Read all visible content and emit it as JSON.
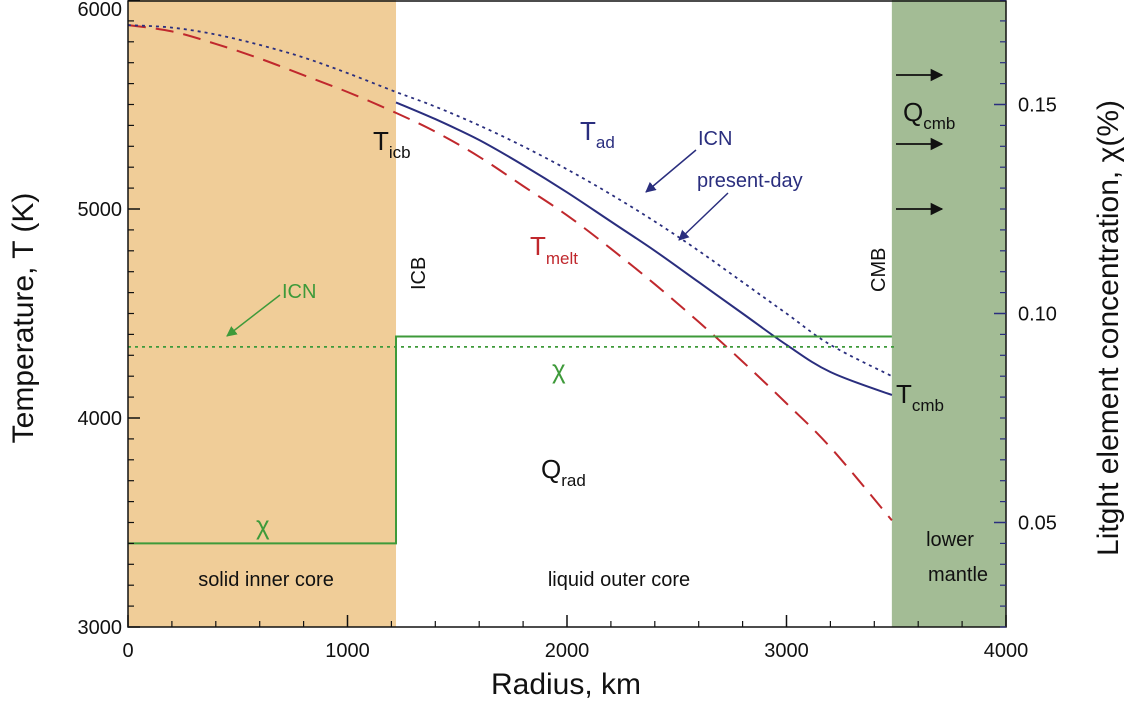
{
  "chart_data": {
    "type": "line",
    "xlabel": "Radius, km",
    "ylabel": "Temperature, T (K)",
    "y2label": "Litght element concentration, χ(%)",
    "xlim": [
      0,
      4000
    ],
    "ylim": [
      3000,
      6000
    ],
    "y2lim": [
      0.025,
      0.175
    ],
    "x_ticks": [
      0,
      1000,
      2000,
      3000,
      4000
    ],
    "y_ticks": [
      3000,
      4000,
      5000,
      6000
    ],
    "y2_ticks": [
      0.05,
      0.1,
      0.15
    ],
    "y2_tick_labels": [
      "0.05",
      "0.10",
      "0.15"
    ],
    "grid": false,
    "regions": [
      {
        "label": "solid inner core",
        "x": [
          0,
          1221
        ],
        "color": "#f0cd98"
      },
      {
        "label": "liquid outer core",
        "x": [
          1221,
          3480
        ],
        "color": "#ffffff"
      },
      {
        "label": "lower mantle",
        "x": [
          3480,
          4000
        ],
        "color": "#a3bc95"
      }
    ],
    "boundaries": [
      {
        "label": "ICB",
        "x": 1221
      },
      {
        "label": "CMB",
        "x": 3480
      }
    ],
    "series": [
      {
        "name": "T_melt",
        "style": "dashed",
        "color": "#c0282d",
        "x": [
          0,
          200,
          400,
          600,
          800,
          1000,
          1221,
          1400,
          1600,
          1800,
          2000,
          2200,
          2400,
          2600,
          2800,
          3000,
          3200,
          3480
        ],
        "y": [
          5880,
          5850,
          5790,
          5720,
          5640,
          5560,
          5460,
          5370,
          5250,
          5110,
          4970,
          4810,
          4640,
          4460,
          4270,
          4070,
          3860,
          3510
        ]
      },
      {
        "name": "T_ad ICN",
        "style": "dotted",
        "color": "#2a2e7e",
        "x": [
          0,
          200,
          400,
          600,
          800,
          1000,
          1221,
          1400,
          1600,
          1800,
          2000,
          2200,
          2400,
          2600,
          2800,
          3000,
          3200,
          3480
        ],
        "y": [
          5880,
          5868,
          5835,
          5785,
          5725,
          5650,
          5560,
          5490,
          5400,
          5300,
          5190,
          5070,
          4940,
          4800,
          4650,
          4500,
          4350,
          4200
        ]
      },
      {
        "name": "T_ad present-day",
        "style": "solid",
        "color": "#2a2e7e",
        "x": [
          1221,
          1400,
          1600,
          1800,
          2000,
          2200,
          2400,
          2600,
          2800,
          3000,
          3200,
          3480
        ],
        "y": [
          5510,
          5430,
          5330,
          5210,
          5080,
          4940,
          4800,
          4650,
          4500,
          4350,
          4220,
          4110
        ]
      },
      {
        "name": "chi ICN",
        "axis": "y2",
        "style": "dotted",
        "color": "#3e9a3a",
        "x": [
          0,
          3500
        ],
        "y": [
          0.092,
          0.092
        ]
      },
      {
        "name": "chi present-day",
        "axis": "y2",
        "style": "solid",
        "color": "#3e9a3a",
        "x": [
          0,
          1221,
          1221,
          1221,
          3480
        ],
        "y": [
          0.045,
          0.045,
          0.06,
          0.0945,
          0.0945
        ]
      }
    ],
    "annotations": {
      "T_icb": {
        "main": "T",
        "sub": "icb"
      },
      "T_ad": {
        "main": "T",
        "sub": "ad"
      },
      "T_melt": {
        "main": "T",
        "sub": "melt"
      },
      "T_cmb": {
        "main": "T",
        "sub": "cmb"
      },
      "Q_cmb": {
        "main": "Q",
        "sub": "cmb"
      },
      "Q_rad": {
        "main": "Q",
        "sub": "rad"
      },
      "ICN_blue": "ICN",
      "present_day": "present-day",
      "ICN_green": "ICN",
      "chi_inner": "χ",
      "chi_outer": "χ",
      "ICB": "ICB",
      "CMB": "CMB",
      "solid_inner_core": "solid inner core",
      "liquid_outer_core": "liquid outer core",
      "lower": "lower",
      "mantle": "mantle"
    },
    "colors": {
      "inner_core": "#f0cd98",
      "mantle": "#a3bc95",
      "melt": "#c0282d",
      "adiabat": "#2a2e7e",
      "chi": "#3e9a3a",
      "ticks_blue": "#2a2e7e"
    }
  }
}
